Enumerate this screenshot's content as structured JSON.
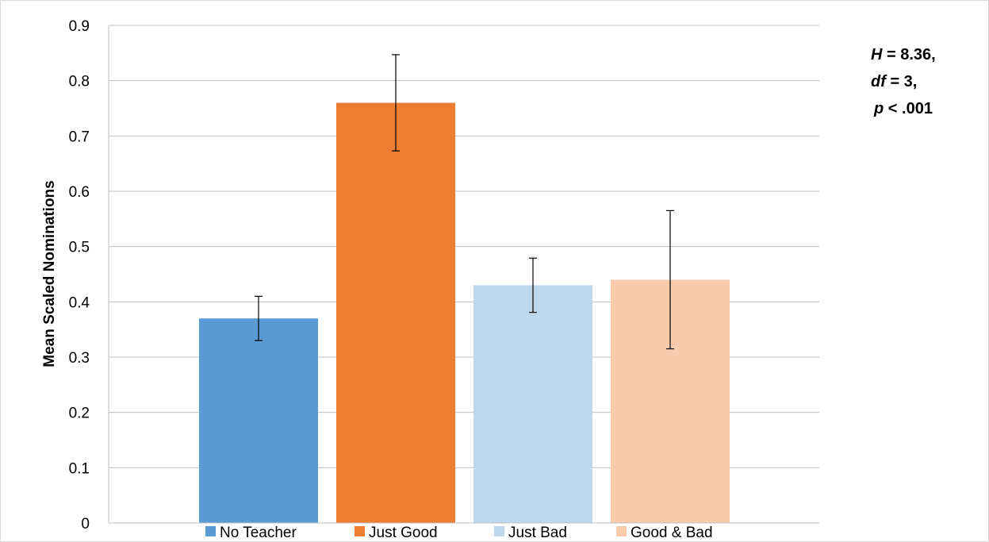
{
  "chart_data": {
    "type": "bar",
    "categories": [
      "No Teacher",
      "Just Good",
      "Just Bad",
      "Good & Bad"
    ],
    "values": [
      0.37,
      0.76,
      0.43,
      0.44
    ],
    "error_low": [
      0.33,
      0.673,
      0.381,
      0.315
    ],
    "error_high": [
      0.41,
      0.847,
      0.479,
      0.565
    ],
    "colors": [
      "#5b9bd5",
      "#ed7d31",
      "#bdd7ee",
      "#f8cbad"
    ],
    "title": "",
    "xlabel": "",
    "ylabel": "Mean Scaled Nominations",
    "ylim": [
      0,
      0.9
    ],
    "yticks": [
      "0",
      "0.1",
      "0.2",
      "0.3",
      "0.4",
      "0.5",
      "0.6",
      "0.7",
      "0.8",
      "0.9"
    ],
    "grid": true,
    "legend": "bottom",
    "legend_entries": [
      "No Teacher",
      "Just Good",
      "Just Bad",
      "Good & Bad"
    ]
  },
  "annotation": {
    "h_sym": "H",
    "h_val": " = 8.36,",
    "df_sym": "df",
    "df_val": " = 3,",
    "p_sym": "p",
    "p_val": " < .001"
  }
}
